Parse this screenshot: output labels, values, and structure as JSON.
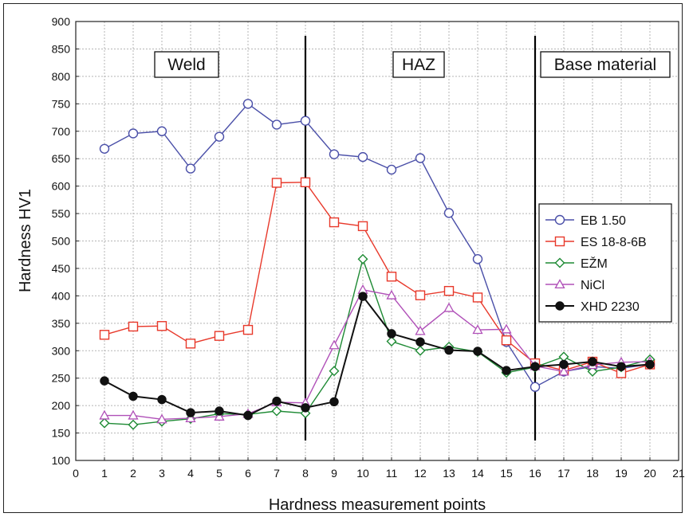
{
  "chart_data": {
    "type": "line",
    "title": "",
    "xlabel": "Hardness measurement points",
    "ylabel": "Hardness HV1",
    "xlim": [
      0,
      21
    ],
    "ylim": [
      100,
      900
    ],
    "xticks": [
      "0",
      "1",
      "2",
      "3",
      "4",
      "5",
      "6",
      "7",
      "8",
      "9",
      "10",
      "11",
      "12",
      "13",
      "14",
      "15",
      "16",
      "17",
      "18",
      "19",
      "20",
      "21"
    ],
    "yticks": [
      "100",
      "150",
      "200",
      "250",
      "300",
      "350",
      "400",
      "450",
      "500",
      "550",
      "600",
      "650",
      "700",
      "750",
      "800",
      "850",
      "900"
    ],
    "grid": true,
    "legend_position": "right",
    "regions": [
      {
        "label": "Weld"
      },
      {
        "label": "HAZ"
      },
      {
        "label": "Base material"
      }
    ],
    "boundaries": [
      8,
      16
    ],
    "x": [
      1,
      2,
      3,
      4,
      5,
      6,
      7,
      8,
      9,
      10,
      11,
      12,
      13,
      14,
      15,
      16,
      17,
      18,
      19,
      20
    ],
    "series": [
      {
        "name": "EB 1.50",
        "color": "#4a4fa8",
        "marker": "circle",
        "values": [
          668,
          696,
          700,
          632,
          690,
          750,
          712,
          719,
          658,
          653,
          630,
          651,
          551,
          467,
          316,
          234,
          262,
          271,
          268,
          275
        ]
      },
      {
        "name": "ES 18-8-6B",
        "color": "#e8392b",
        "marker": "square",
        "values": [
          329,
          344,
          345,
          313,
          327,
          338,
          606,
          607,
          534,
          527,
          435,
          401,
          409,
          397,
          319,
          277,
          264,
          280,
          259,
          275
        ]
      },
      {
        "name": "EŽM",
        "color": "#1e8a34",
        "marker": "diamond",
        "values": [
          168,
          165,
          171,
          176,
          185,
          184,
          190,
          186,
          263,
          467,
          317,
          300,
          307,
          298,
          260,
          270,
          289,
          262,
          270,
          284
        ]
      },
      {
        "name": "NiCl",
        "color": "#b050b8",
        "marker": "triangle",
        "values": [
          182,
          182,
          175,
          177,
          180,
          185,
          206,
          205,
          310,
          411,
          401,
          336,
          378,
          338,
          339,
          272,
          262,
          274,
          279,
          280
        ]
      },
      {
        "name": "XHD 2230",
        "color": "#111111",
        "marker": "filled-circle",
        "values": [
          245,
          217,
          211,
          187,
          190,
          182,
          208,
          196,
          207,
          399,
          331,
          316,
          301,
          299,
          264,
          271,
          275,
          280,
          271,
          275
        ]
      }
    ]
  }
}
